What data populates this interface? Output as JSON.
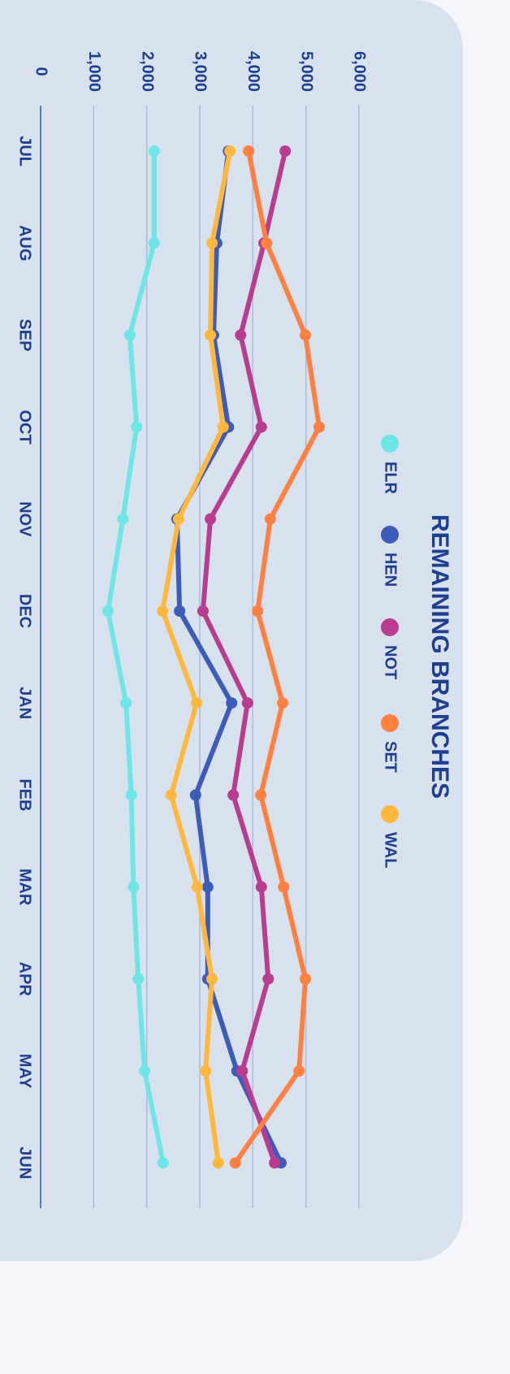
{
  "chart_data": {
    "type": "line",
    "title": "REMAINING BRANCHES",
    "categories": [
      "JUL",
      "AUG",
      "SEP",
      "OCT",
      "NOV",
      "DEC",
      "JAN",
      "FEB",
      "MAR",
      "APR",
      "MAY",
      "JUN"
    ],
    "series": [
      {
        "name": "ELR",
        "color": "#6ee6e6",
        "values": [
          2140,
          2140,
          1680,
          1810,
          1550,
          1270,
          1610,
          1710,
          1750,
          1840,
          1960,
          2310
        ]
      },
      {
        "name": "HEN",
        "color": "#3d5bb8",
        "values": [
          3540,
          3320,
          3260,
          3540,
          2570,
          2620,
          3600,
          2920,
          3150,
          3150,
          3700,
          4530
        ]
      },
      {
        "name": "NOT",
        "color": "#b83d8f",
        "values": [
          4610,
          4210,
          3770,
          4160,
          3200,
          3060,
          3900,
          3630,
          4160,
          4290,
          3800,
          4410
        ]
      },
      {
        "name": "SET",
        "color": "#ff8040",
        "values": [
          3920,
          4260,
          4990,
          5250,
          4330,
          4090,
          4560,
          4150,
          4580,
          4990,
          4870,
          3670
        ]
      },
      {
        "name": "WAL",
        "color": "#ffb83d",
        "values": [
          3570,
          3230,
          3200,
          3440,
          2600,
          2300,
          2940,
          2460,
          2950,
          3230,
          3110,
          3350
        ]
      }
    ],
    "ylim": [
      0,
      6000
    ],
    "yticks": [
      0,
      {
        "value": 1000,
        "label": "1,000"
      },
      {
        "value": 2000,
        "label": "2,000"
      },
      {
        "value": 3000,
        "label": "3,000"
      },
      {
        "value": 4000,
        "label": "4,000"
      },
      {
        "value": 5000,
        "label": "5,000"
      },
      {
        "value": 6000,
        "label": "6,000"
      }
    ],
    "grid": true
  }
}
